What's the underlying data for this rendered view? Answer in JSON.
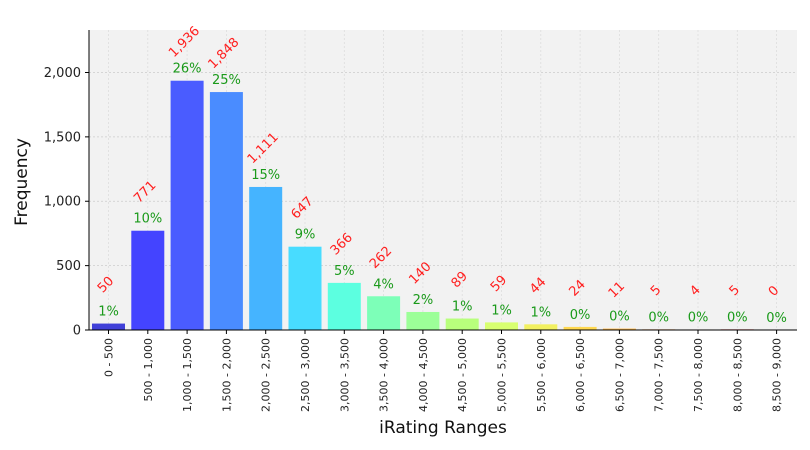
{
  "chart_data": {
    "type": "bar",
    "title": "",
    "xlabel": "iRating Ranges",
    "ylabel": "Frequency",
    "ylim": [
      0,
      2330
    ],
    "yticks": [
      0,
      500,
      1000,
      1500,
      2000
    ],
    "ytick_labels": [
      "0",
      "500",
      "1,000",
      "1,500",
      "2,000"
    ],
    "grid": true,
    "categories": [
      "0 - 500",
      "500 - 1,000",
      "1,000 - 1,500",
      "1,500 - 2,000",
      "2,000 - 2,500",
      "2,500 - 3,000",
      "3,000 - 3,500",
      "3,500 - 4,000",
      "4,000 - 4,500",
      "4,500 - 5,000",
      "5,000 - 5,500",
      "5,500 - 6,000",
      "6,000 - 6,500",
      "6,500 - 7,000",
      "7,000 - 7,500",
      "7,500 - 8,000",
      "8,000 - 8,500",
      "8,500 - 9,000"
    ],
    "values": [
      50,
      771,
      1936,
      1848,
      1111,
      647,
      366,
      262,
      140,
      89,
      59,
      44,
      24,
      11,
      5,
      4,
      5,
      0
    ],
    "count_labels": [
      "50",
      "771",
      "1,936",
      "1,848",
      "1,111",
      "647",
      "366",
      "262",
      "140",
      "89",
      "59",
      "44",
      "24",
      "11",
      "5",
      "4",
      "5",
      "0"
    ],
    "percent_labels": [
      "1%",
      "10%",
      "26%",
      "25%",
      "15%",
      "9%",
      "5%",
      "4%",
      "2%",
      "1%",
      "1%",
      "1%",
      "0%",
      "0%",
      "0%",
      "0%",
      "0%",
      "0%"
    ],
    "colors": [
      "#4040d8",
      "#4444ff",
      "#4a5cff",
      "#4a8cff",
      "#45b4ff",
      "#48dcff",
      "#5cffe0",
      "#7dffb8",
      "#9cff98",
      "#b8ff7c",
      "#d8ff70",
      "#f2f060",
      "#ffd850",
      "#ffb848",
      "#ff9845",
      "#ff7845",
      "#e84848",
      "#c83c3c"
    ]
  }
}
